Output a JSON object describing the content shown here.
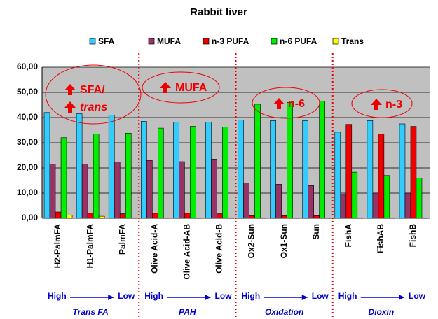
{
  "chart_data": {
    "type": "bar",
    "title": "Rabbit liver",
    "categories": [
      "H2-PalmFA",
      "H1-PalmFA",
      "PalmFA",
      "Olive Acid-A",
      "Olive Acid-AB",
      "Olive Acid-B",
      "Ox2-Sun",
      "Ox1-Sun",
      "Sun",
      "FishA",
      "FishAB",
      "FishB"
    ],
    "series": [
      {
        "name": "SFA",
        "color": "#33ccff",
        "values": [
          42,
          41.5,
          41,
          38.5,
          38.2,
          38.2,
          39,
          38.8,
          38.8,
          34.2,
          38.8,
          37.5
        ]
      },
      {
        "name": "MUFA",
        "color": "#993366",
        "values": [
          21.5,
          21.5,
          22.3,
          23,
          22.5,
          23.5,
          14,
          13.5,
          13,
          9.5,
          10,
          10
        ]
      },
      {
        "name": "n-3 PUFA",
        "color": "#ee0000",
        "values": [
          2.5,
          2,
          1.8,
          2,
          2,
          1.8,
          1,
          1,
          1,
          37.3,
          33.5,
          36.5
        ]
      },
      {
        "name": "n-6 PUFA",
        "color": "#00ee00",
        "values": [
          32,
          33.5,
          33.8,
          35.8,
          36.5,
          36.3,
          45.3,
          46,
          46.5,
          18.3,
          17,
          16
        ]
      },
      {
        "name": "Trans",
        "color": "#ffff00",
        "values": [
          1.2,
          0.8,
          0.2,
          0.2,
          0.2,
          0.2,
          0.2,
          0.2,
          0.2,
          0.2,
          0.2,
          0.2
        ]
      }
    ],
    "ylim": [
      0,
      60
    ],
    "yticks": [
      {
        "value": 0,
        "label": "0,00"
      },
      {
        "value": 10,
        "label": "10,00"
      },
      {
        "value": 20,
        "label": "20,00"
      },
      {
        "value": 30,
        "label": "30,00"
      },
      {
        "value": 40,
        "label": "40,00"
      },
      {
        "value": 50,
        "label": "50,00"
      },
      {
        "value": 60,
        "label": "60,00"
      }
    ],
    "grid": true,
    "legend": "top",
    "annotations": [
      "SFA/",
      "trans",
      "MUFA",
      "n-6",
      "n-3"
    ],
    "groups": [
      {
        "high": "High",
        "low": "Low",
        "name": "Trans FA"
      },
      {
        "high": "High",
        "low": "Low",
        "name": "PAH"
      },
      {
        "high": "High",
        "low": "Low",
        "name": "Oxidation"
      },
      {
        "high": "High",
        "low": "Low",
        "name": "Dioxin"
      }
    ]
  }
}
